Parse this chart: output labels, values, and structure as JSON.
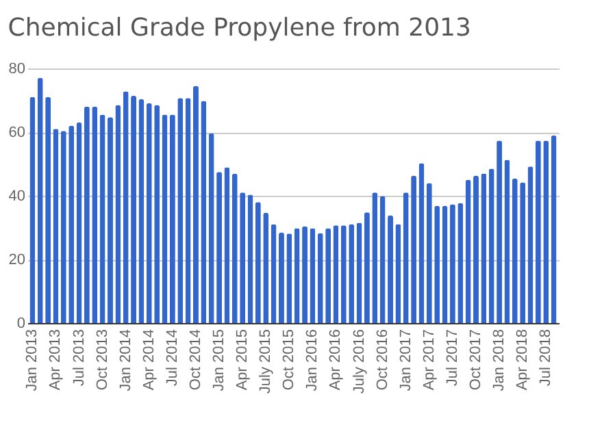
{
  "chart_data": {
    "type": "bar",
    "title": "Chemical Grade Propylene from 2013",
    "categories": [
      "Jan 2013",
      null,
      null,
      "Apr 2013",
      null,
      null,
      "Jul 2013",
      null,
      null,
      "Oct 2013",
      null,
      null,
      "Jan 2014",
      null,
      null,
      "Apr 2014",
      null,
      null,
      "Jul 2014",
      null,
      null,
      "Oct 2014",
      null,
      null,
      "Jan 2015",
      null,
      null,
      "Apr 2015",
      null,
      null,
      "July 2015",
      null,
      null,
      "Oct 2015",
      null,
      null,
      "Jan 2016",
      null,
      null,
      "Apr 2016",
      null,
      null,
      "July 2016",
      null,
      null,
      "Oct 2016",
      null,
      null,
      "Jan 2017",
      null,
      null,
      "Apr 2017",
      null,
      null,
      "Jul 2017",
      null,
      null,
      "Oct 2017",
      null,
      null,
      "Jan 2018",
      null,
      null,
      "Apr 2018",
      null,
      null,
      "Jul 2018",
      null
    ],
    "values": [
      71,
      77,
      71,
      61,
      60.4,
      62,
      63,
      68,
      68,
      65.5,
      64.7,
      68.5,
      72.8,
      71.4,
      70.3,
      69.1,
      68.5,
      65.5,
      65.5,
      70.7,
      70.7,
      74.5,
      69.8,
      59.6,
      47.5,
      48.9,
      46.9,
      41,
      40.3,
      38,
      34.6,
      31,
      28.4,
      28.1,
      29.8,
      30.4,
      29.8,
      28.2,
      29.8,
      30.7,
      30.7,
      31.1,
      31.5,
      34.8,
      41,
      39.9,
      33.8,
      31.1,
      41,
      46.3,
      50.2,
      44,
      36.8,
      36.8,
      37.3,
      37.7,
      45,
      46.3,
      47,
      48.5,
      57.3,
      51.3,
      45.4,
      44.2,
      49.2,
      57.3,
      57.3,
      58.9
    ],
    "color": "#3366cc",
    "ylim": [
      0,
      80
    ],
    "yticks": [
      0,
      20,
      40,
      60,
      80
    ],
    "grid": "y"
  }
}
